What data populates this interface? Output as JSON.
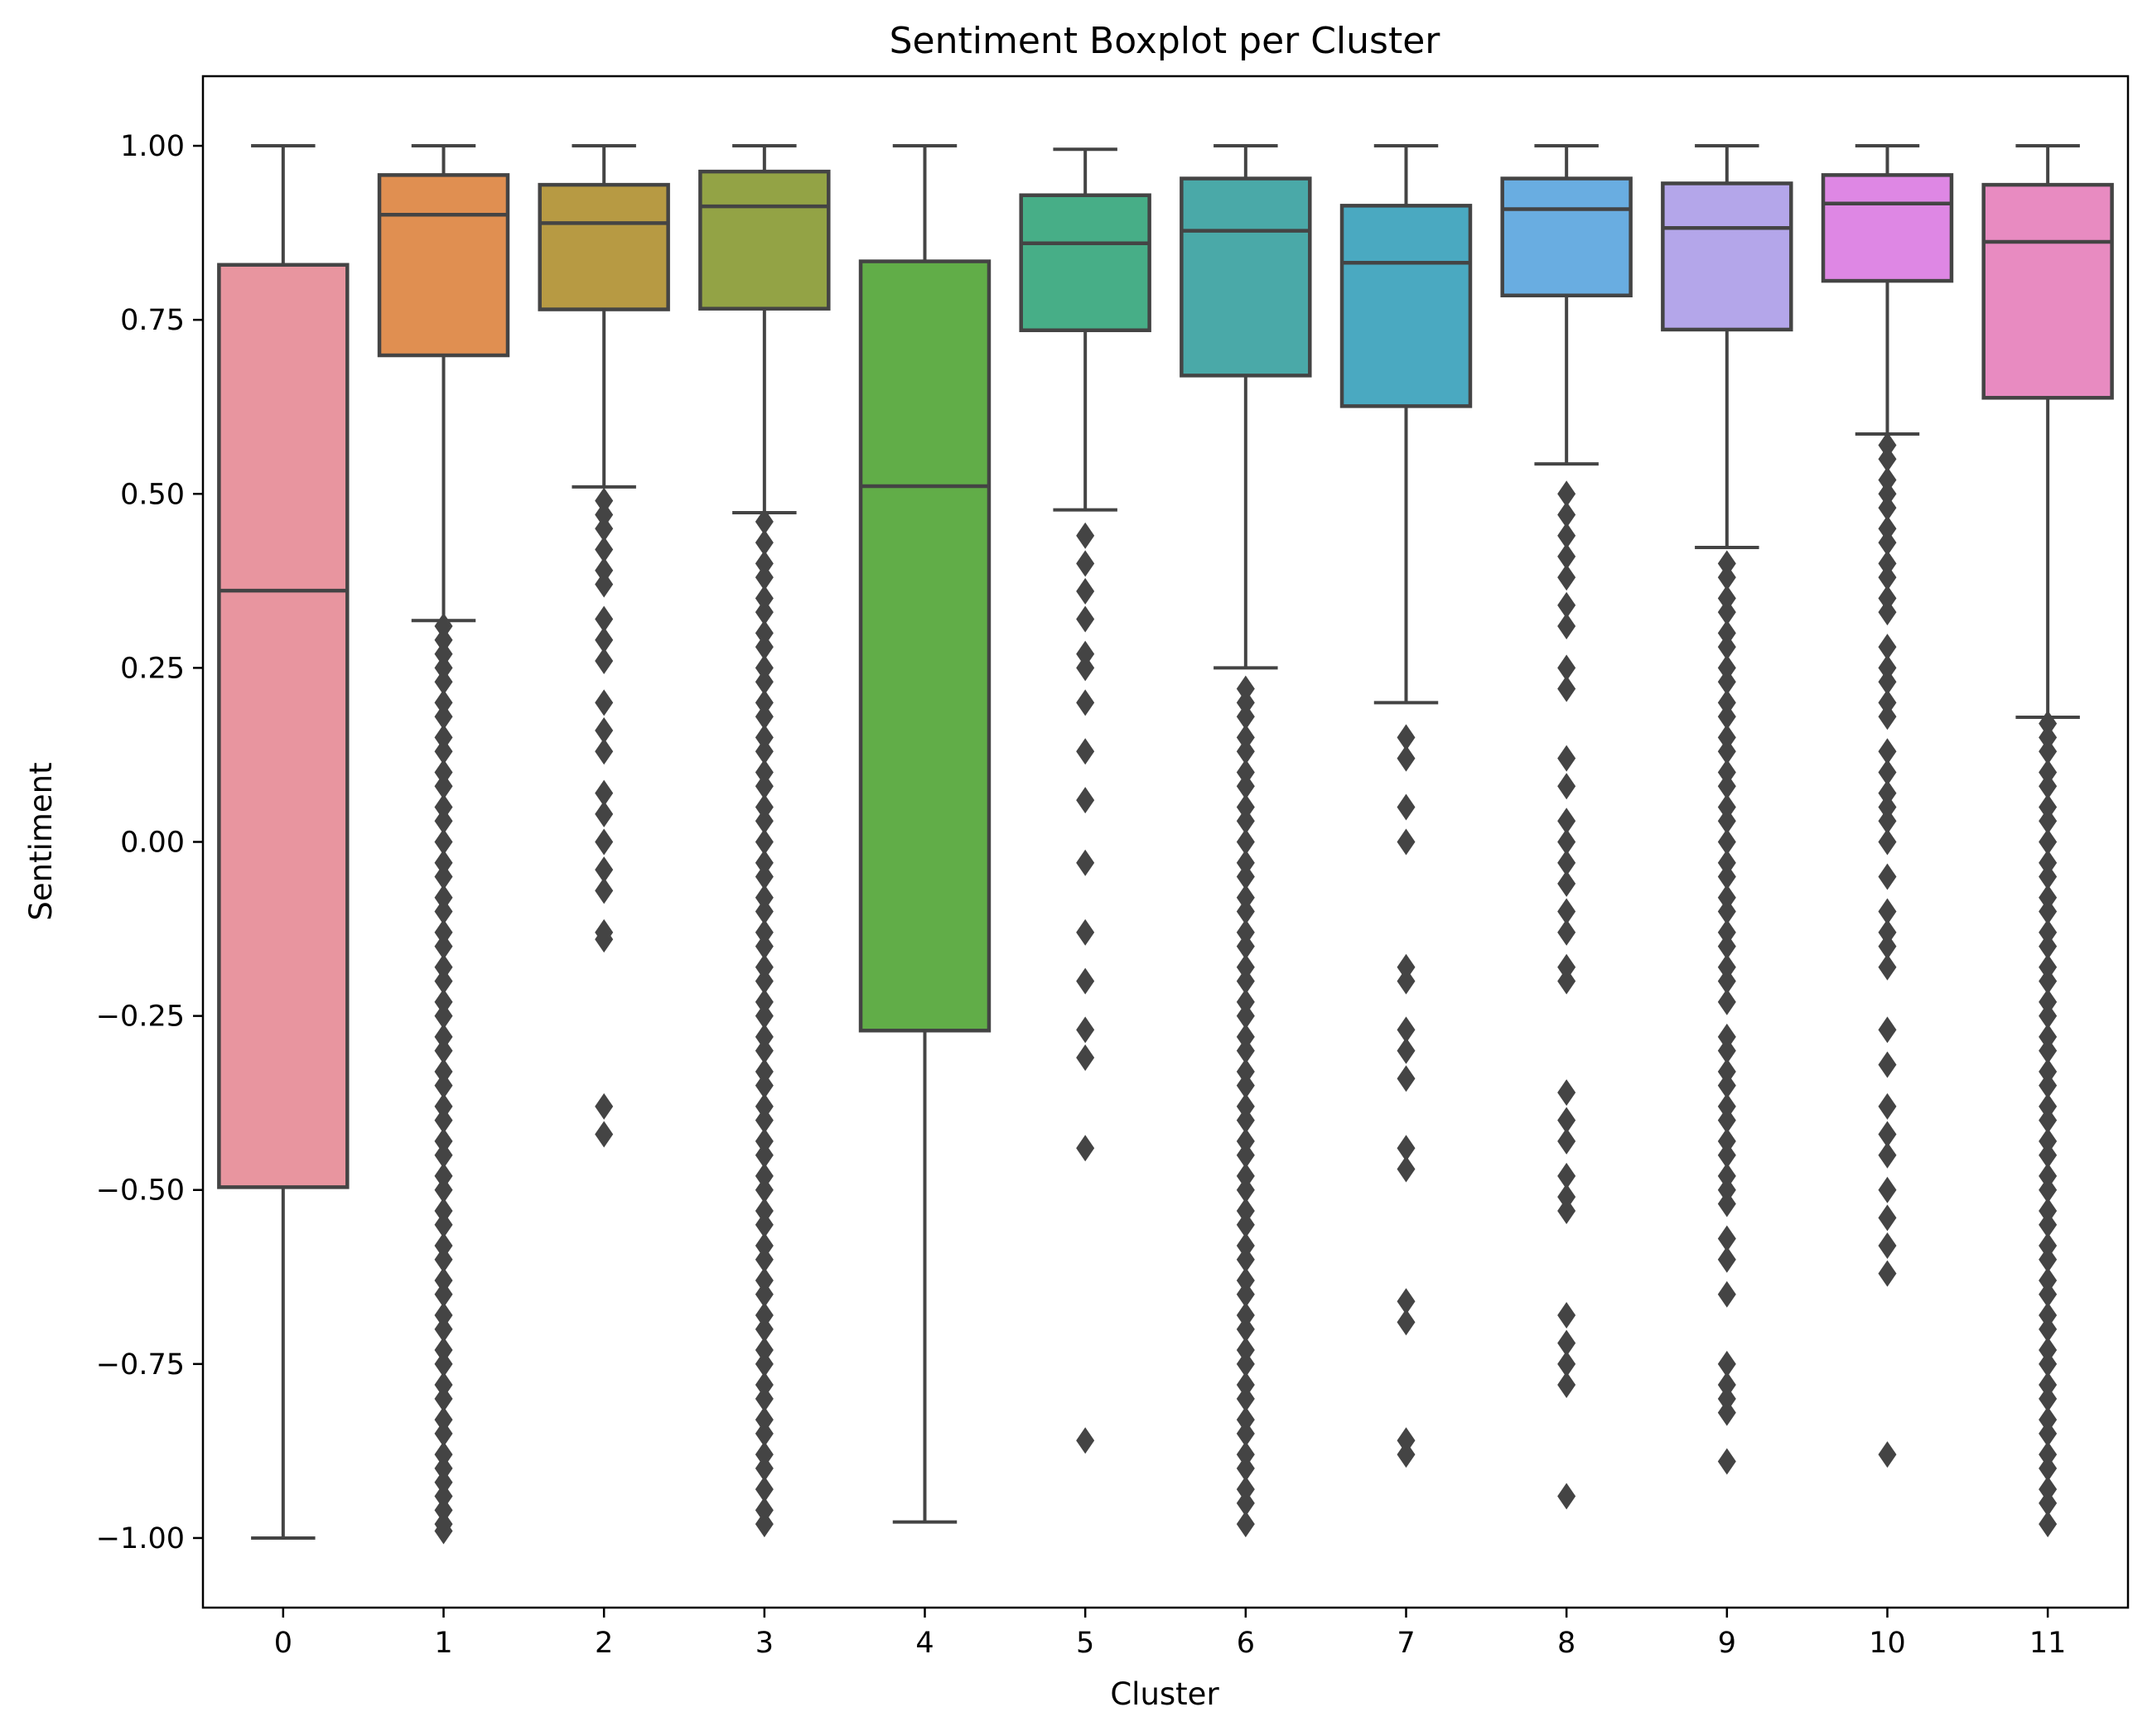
{
  "chart_data": {
    "type": "boxplot",
    "title": "Sentiment Boxplot per Cluster",
    "xlabel": "Cluster",
    "ylabel": "Sentiment",
    "ylim": [
      -1.1,
      1.1
    ],
    "yticks": [
      1.0,
      0.75,
      0.5,
      0.25,
      0.0,
      -0.25,
      -0.5,
      -0.75,
      -1.0
    ],
    "ytick_labels": [
      "1.00",
      "0.75",
      "0.50",
      "0.25",
      "0.00",
      "−0.25",
      "−0.50",
      "−0.75",
      "−1.00"
    ],
    "grid": false,
    "categories": [
      "0",
      "1",
      "2",
      "3",
      "4",
      "5",
      "6",
      "7",
      "8",
      "9",
      "10",
      "11"
    ],
    "boxes": [
      {
        "category": "0",
        "color": "#e8959f",
        "whislo": -1.0,
        "q1": -0.496,
        "median": 0.361,
        "q3": 0.829,
        "whishi": 1.0,
        "fliers": []
      },
      {
        "category": "1",
        "color": "#e08f51",
        "whislo": 0.318,
        "q1": 0.699,
        "median": 0.901,
        "q3": 0.958,
        "whishi": 1.0,
        "fliers": [
          0.31,
          0.29,
          0.27,
          0.25,
          0.23,
          0.2,
          0.18,
          0.15,
          0.13,
          0.1,
          0.08,
          0.05,
          0.03,
          0.0,
          -0.03,
          -0.05,
          -0.08,
          -0.1,
          -0.13,
          -0.15,
          -0.18,
          -0.2,
          -0.23,
          -0.25,
          -0.28,
          -0.3,
          -0.33,
          -0.35,
          -0.38,
          -0.4,
          -0.43,
          -0.45,
          -0.48,
          -0.5,
          -0.53,
          -0.55,
          -0.58,
          -0.6,
          -0.63,
          -0.65,
          -0.68,
          -0.7,
          -0.73,
          -0.75,
          -0.78,
          -0.8,
          -0.83,
          -0.85,
          -0.88,
          -0.9,
          -0.92,
          -0.94,
          -0.96,
          -0.98,
          -0.99
        ]
      },
      {
        "category": "2",
        "color": "#b79a43",
        "whislo": 0.51,
        "q1": 0.765,
        "median": 0.889,
        "q3": 0.944,
        "whishi": 1.0,
        "fliers": [
          0.49,
          0.47,
          0.45,
          0.42,
          0.39,
          0.37,
          0.32,
          0.29,
          0.26,
          0.2,
          0.16,
          0.13,
          0.07,
          0.04,
          0.0,
          -0.04,
          -0.07,
          -0.13,
          -0.14,
          -0.38,
          -0.42
        ]
      },
      {
        "category": "3",
        "color": "#93a345",
        "whislo": 0.473,
        "q1": 0.766,
        "median": 0.913,
        "q3": 0.963,
        "whishi": 1.0,
        "fliers": [
          0.46,
          0.43,
          0.4,
          0.38,
          0.35,
          0.33,
          0.3,
          0.28,
          0.25,
          0.23,
          0.2,
          0.18,
          0.15,
          0.13,
          0.1,
          0.08,
          0.05,
          0.03,
          0.0,
          -0.03,
          -0.05,
          -0.08,
          -0.1,
          -0.13,
          -0.15,
          -0.18,
          -0.2,
          -0.23,
          -0.25,
          -0.28,
          -0.3,
          -0.33,
          -0.35,
          -0.38,
          -0.4,
          -0.43,
          -0.45,
          -0.48,
          -0.5,
          -0.53,
          -0.55,
          -0.58,
          -0.6,
          -0.63,
          -0.65,
          -0.68,
          -0.7,
          -0.73,
          -0.75,
          -0.78,
          -0.8,
          -0.83,
          -0.85,
          -0.88,
          -0.9,
          -0.93,
          -0.96,
          -0.98
        ]
      },
      {
        "category": "4",
        "color": "#61ad48",
        "whislo": -0.977,
        "q1": -0.271,
        "median": 0.511,
        "q3": 0.834,
        "whishi": 1.0,
        "fliers": []
      },
      {
        "category": "5",
        "color": "#47ae87",
        "whislo": 0.477,
        "q1": 0.735,
        "median": 0.86,
        "q3": 0.929,
        "whishi": 0.995,
        "fliers": [
          0.44,
          0.4,
          0.36,
          0.32,
          0.27,
          0.25,
          0.2,
          0.13,
          0.06,
          -0.03,
          -0.13,
          -0.2,
          -0.27,
          -0.31,
          -0.44,
          -0.86
        ]
      },
      {
        "category": "6",
        "color": "#4aa9a8",
        "whislo": 0.25,
        "q1": 0.67,
        "median": 0.878,
        "q3": 0.953,
        "whishi": 1.0,
        "fliers": [
          0.22,
          0.2,
          0.18,
          0.15,
          0.13,
          0.1,
          0.08,
          0.05,
          0.03,
          0.0,
          -0.03,
          -0.05,
          -0.08,
          -0.1,
          -0.13,
          -0.15,
          -0.18,
          -0.2,
          -0.23,
          -0.25,
          -0.28,
          -0.3,
          -0.33,
          -0.35,
          -0.38,
          -0.4,
          -0.43,
          -0.45,
          -0.48,
          -0.5,
          -0.53,
          -0.55,
          -0.58,
          -0.6,
          -0.63,
          -0.65,
          -0.68,
          -0.7,
          -0.73,
          -0.75,
          -0.78,
          -0.8,
          -0.83,
          -0.85,
          -0.88,
          -0.9,
          -0.93,
          -0.95,
          -0.98
        ]
      },
      {
        "category": "7",
        "color": "#4aa9c1",
        "whislo": 0.2,
        "q1": 0.626,
        "median": 0.832,
        "q3": 0.914,
        "whishi": 1.0,
        "fliers": [
          0.15,
          0.12,
          0.05,
          0.0,
          -0.18,
          -0.2,
          -0.27,
          -0.3,
          -0.34,
          -0.44,
          -0.47,
          -0.66,
          -0.69,
          -0.86,
          -0.88
        ]
      },
      {
        "category": "8",
        "color": "#69ade1",
        "whislo": 0.543,
        "q1": 0.785,
        "median": 0.909,
        "q3": 0.953,
        "whishi": 1.0,
        "fliers": [
          0.5,
          0.47,
          0.44,
          0.41,
          0.38,
          0.34,
          0.31,
          0.25,
          0.22,
          0.12,
          0.08,
          0.03,
          0.0,
          -0.03,
          -0.06,
          -0.1,
          -0.13,
          -0.18,
          -0.2,
          -0.36,
          -0.4,
          -0.43,
          -0.48,
          -0.51,
          -0.53,
          -0.68,
          -0.72,
          -0.75,
          -0.78,
          -0.94
        ]
      },
      {
        "category": "9",
        "color": "#b4a6ea",
        "whislo": 0.423,
        "q1": 0.736,
        "median": 0.882,
        "q3": 0.946,
        "whishi": 1.0,
        "fliers": [
          0.4,
          0.38,
          0.35,
          0.33,
          0.3,
          0.28,
          0.25,
          0.23,
          0.2,
          0.18,
          0.15,
          0.13,
          0.1,
          0.08,
          0.05,
          0.03,
          0.0,
          -0.03,
          -0.05,
          -0.08,
          -0.1,
          -0.13,
          -0.15,
          -0.18,
          -0.2,
          -0.23,
          -0.28,
          -0.3,
          -0.33,
          -0.35,
          -0.38,
          -0.4,
          -0.43,
          -0.45,
          -0.48,
          -0.5,
          -0.52,
          -0.57,
          -0.6,
          -0.65,
          -0.75,
          -0.78,
          -0.8,
          -0.82,
          -0.89
        ]
      },
      {
        "category": "10",
        "color": "#de87e4",
        "whislo": 0.586,
        "q1": 0.806,
        "median": 0.917,
        "q3": 0.958,
        "whishi": 1.0,
        "fliers": [
          0.57,
          0.55,
          0.52,
          0.5,
          0.48,
          0.45,
          0.43,
          0.4,
          0.38,
          0.35,
          0.33,
          0.28,
          0.25,
          0.23,
          0.2,
          0.18,
          0.13,
          0.1,
          0.07,
          0.05,
          0.03,
          0.0,
          -0.05,
          -0.1,
          -0.13,
          -0.15,
          -0.18,
          -0.27,
          -0.32,
          -0.38,
          -0.42,
          -0.45,
          -0.5,
          -0.54,
          -0.58,
          -0.62,
          -0.88
        ]
      },
      {
        "category": "11",
        "color": "#e88bc1",
        "whislo": 0.179,
        "q1": 0.638,
        "median": 0.862,
        "q3": 0.944,
        "whishi": 1.0,
        "fliers": [
          0.17,
          0.15,
          0.13,
          0.1,
          0.08,
          0.05,
          0.03,
          0.0,
          -0.03,
          -0.05,
          -0.08,
          -0.1,
          -0.13,
          -0.15,
          -0.18,
          -0.2,
          -0.23,
          -0.25,
          -0.28,
          -0.3,
          -0.33,
          -0.35,
          -0.38,
          -0.4,
          -0.43,
          -0.45,
          -0.48,
          -0.5,
          -0.53,
          -0.55,
          -0.58,
          -0.6,
          -0.63,
          -0.65,
          -0.68,
          -0.7,
          -0.73,
          -0.75,
          -0.78,
          -0.8,
          -0.83,
          -0.85,
          -0.88,
          -0.9,
          -0.93,
          -0.95,
          -0.98
        ]
      }
    ],
    "style": {
      "line_color": "#444444",
      "flier_color": "#444444",
      "axes_color": "#000000"
    }
  }
}
